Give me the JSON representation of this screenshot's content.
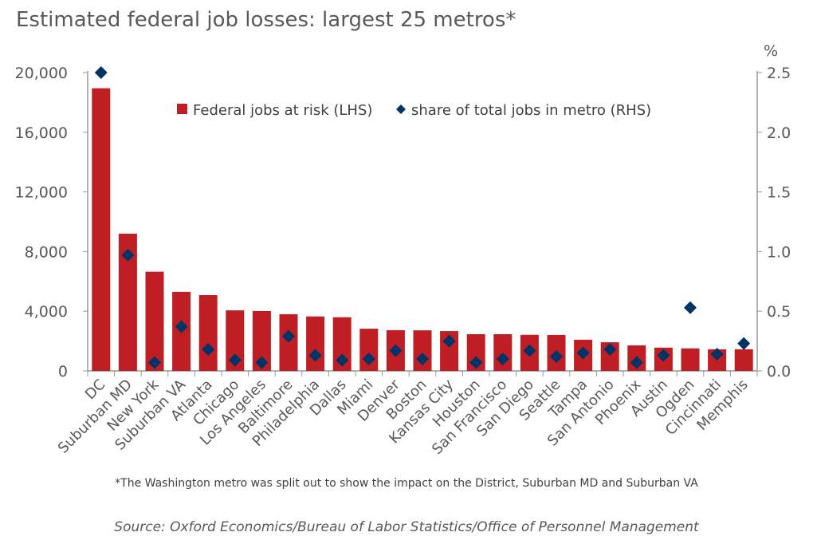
{
  "chart_data": {
    "type": "bar",
    "title": "Estimated federal job losses: largest 25 metros*",
    "categories": [
      "DC",
      "Suburban MD",
      "New York",
      "Suburban VA",
      "Atlanta",
      "Chicago",
      "Los Angeles",
      "Baltimore",
      "Philadelphia",
      "Dallas",
      "Miami",
      "Denver",
      "Boston",
      "Kansas City",
      "Houston",
      "San Francisco",
      "San Diego",
      "Seattle",
      "Tampa",
      "San Antonio",
      "Phoenix",
      "Austin",
      "Ogden",
      "Cincinnati",
      "Memphis"
    ],
    "series": [
      {
        "name": "Federal jobs at risk (LHS)",
        "type": "bar",
        "axis": "left",
        "color": "#BE1E24",
        "values": [
          18950,
          9200,
          6650,
          5300,
          5080,
          4060,
          4010,
          3800,
          3650,
          3600,
          2830,
          2730,
          2720,
          2670,
          2460,
          2460,
          2420,
          2410,
          2090,
          1920,
          1710,
          1560,
          1510,
          1450,
          1450
        ]
      },
      {
        "name": "share of total jobs in metro (RHS)",
        "type": "scatter",
        "axis": "right",
        "color": "#003366",
        "values": [
          2.5,
          0.97,
          0.07,
          0.37,
          0.18,
          0.09,
          0.07,
          0.29,
          0.13,
          0.09,
          0.1,
          0.17,
          0.1,
          0.25,
          0.07,
          0.1,
          0.17,
          0.12,
          0.15,
          0.18,
          0.07,
          0.13,
          0.53,
          0.14,
          0.23
        ]
      }
    ],
    "y_left": {
      "min": 0,
      "max": 20000,
      "ticks": [
        0,
        4000,
        8000,
        12000,
        16000,
        20000
      ],
      "tick_labels": [
        "0",
        "4,000",
        "8,000",
        "12,000",
        "16,000",
        "20,000"
      ]
    },
    "y_right": {
      "label": "%",
      "min": 0,
      "max": 2.5,
      "ticks": [
        0,
        0.5,
        1,
        1.5,
        2,
        2.5
      ],
      "tick_labels": [
        "0.0",
        "0.5",
        "1.0",
        "1.5",
        "2.0",
        "2.5"
      ]
    },
    "legend_position": "top-center",
    "grid": false,
    "footnote": "*The Washington metro was split out to  show the impact on the District, Suburban MD and Suburban VA",
    "source": "Source: Oxford Economics/Bureau of Labor Statistics/Office of Personnel Management"
  }
}
